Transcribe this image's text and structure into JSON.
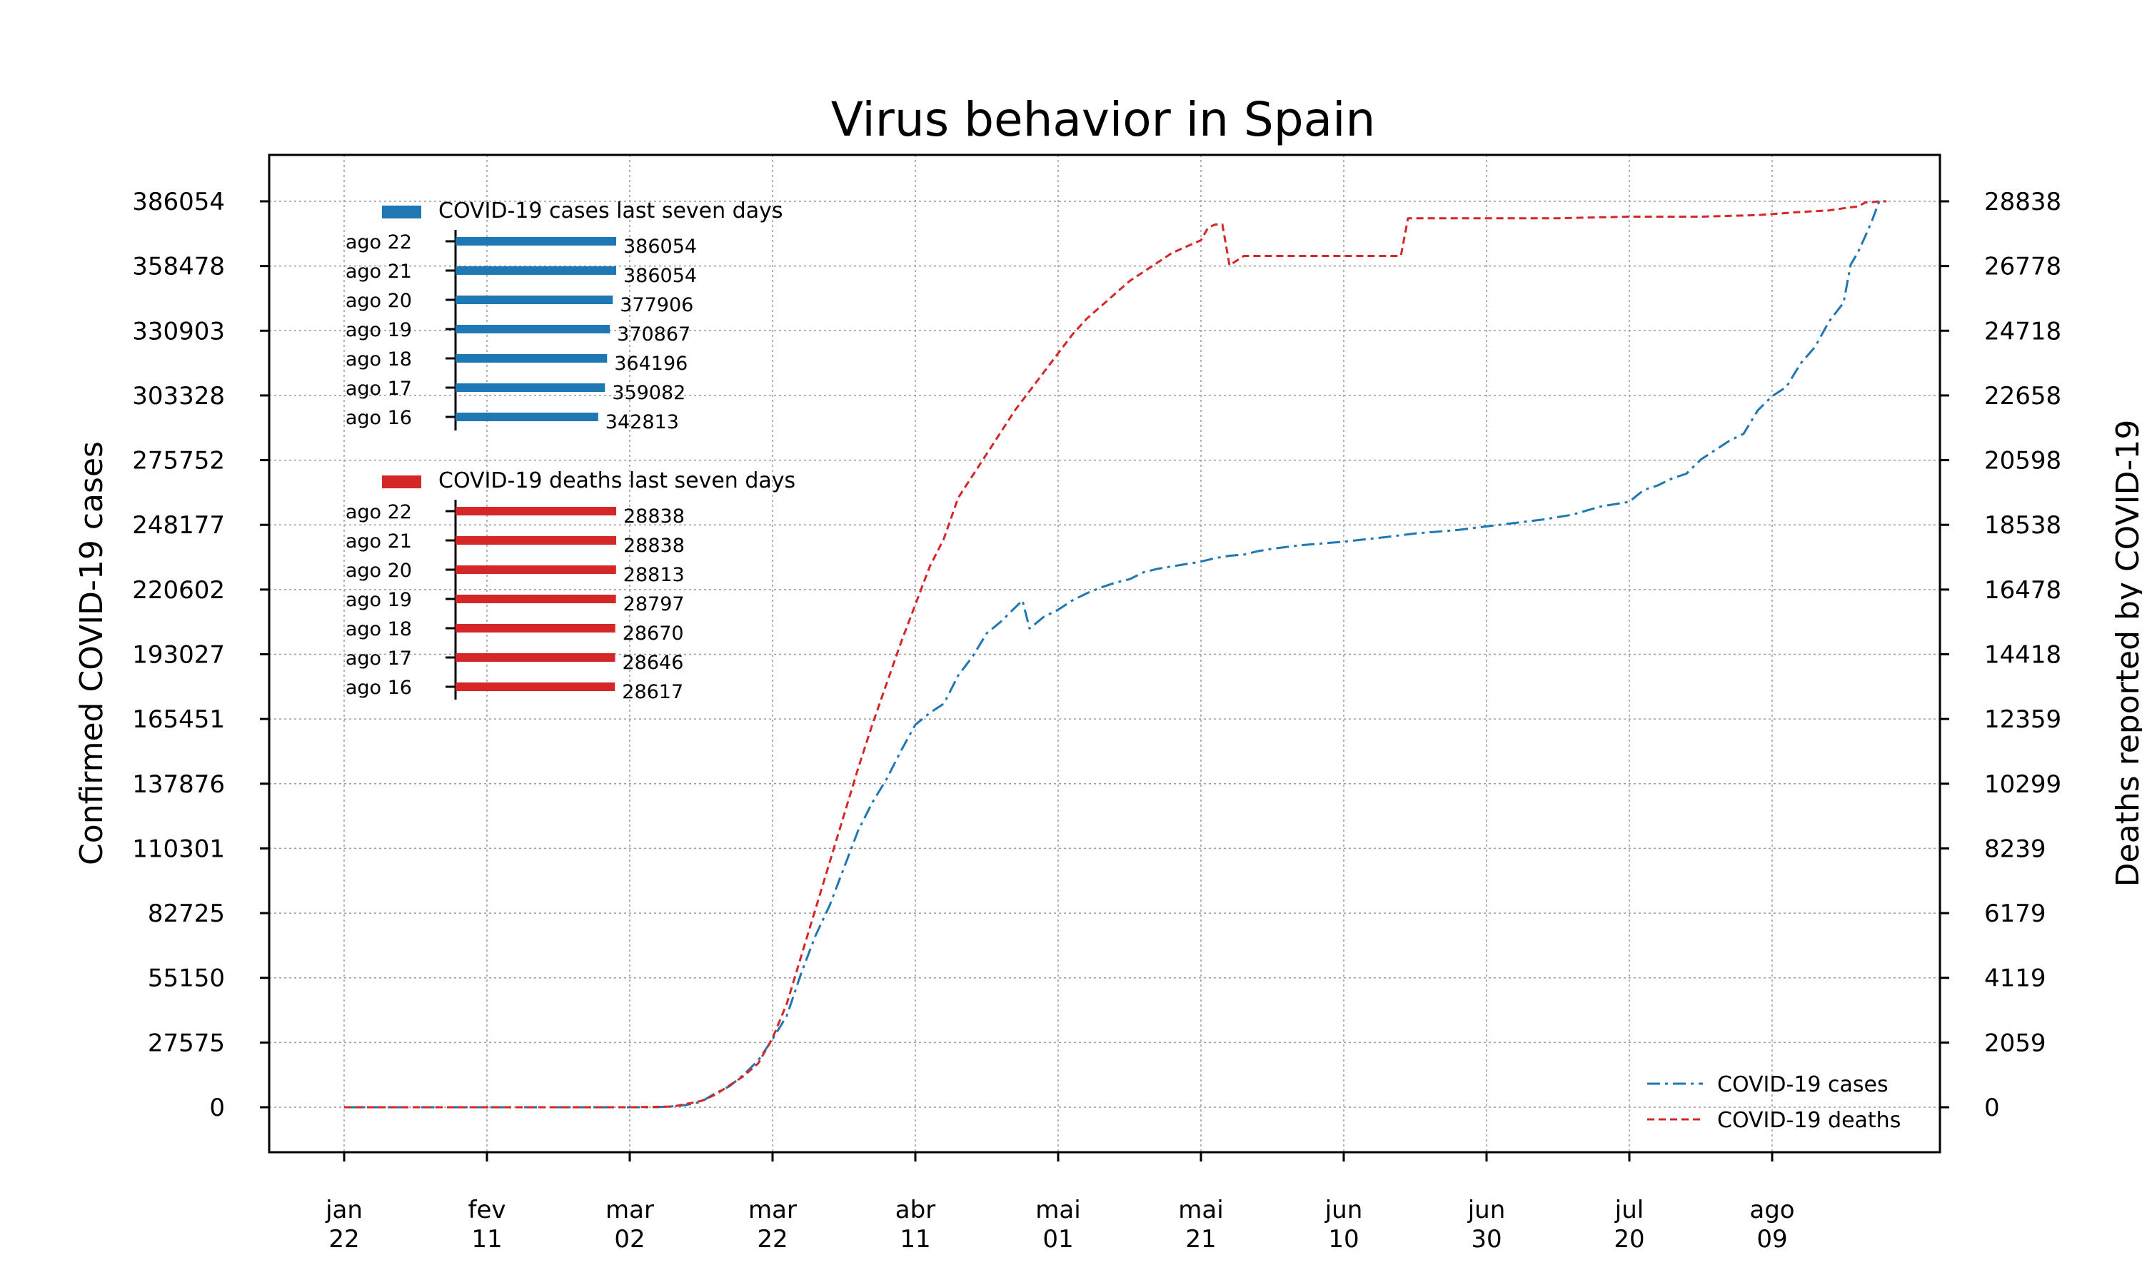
{
  "chart_data": {
    "type": "line",
    "title": "Virus behavior in Spain",
    "ylabel_left": "Confirmed COVID-19 cases",
    "ylabel_right": "Deaths reported by COVID-19",
    "x_tick_labels": [
      {
        "month": "jan",
        "day": "22"
      },
      {
        "month": "fev",
        "day": "11"
      },
      {
        "month": "mar",
        "day": "02"
      },
      {
        "month": "mar",
        "day": "22"
      },
      {
        "month": "abr",
        "day": "11"
      },
      {
        "month": "mai",
        "day": "01"
      },
      {
        "month": "mai",
        "day": "21"
      },
      {
        "month": "jun",
        "day": "10"
      },
      {
        "month": "jun",
        "day": "30"
      },
      {
        "month": "jul",
        "day": "20"
      },
      {
        "month": "ago",
        "day": "09"
      }
    ],
    "x_tick_days": [
      0,
      20,
      40,
      60,
      80,
      100,
      120,
      140,
      160,
      180,
      200
    ],
    "xlim_days": [
      -10.5,
      223.5
    ],
    "y_left_ticks": [
      "0",
      "27575",
      "55150",
      "82725",
      "110301",
      "137876",
      "165451",
      "193027",
      "220602",
      "248177",
      "275752",
      "303328",
      "330903",
      "358478",
      "386054"
    ],
    "y_left_range": [
      0,
      386054
    ],
    "y_right_ticks": [
      "0",
      "2059",
      "4119",
      "6179",
      "8239",
      "10299",
      "12359",
      "14418",
      "16478",
      "18538",
      "20598",
      "22658",
      "24718",
      "26778",
      "28838"
    ],
    "y_right_range": [
      0,
      28838
    ],
    "grid": true,
    "legend_position": "bottom-right",
    "series": [
      {
        "name": "COVID-19 cases",
        "axis": "left",
        "color": "#1f77b4",
        "style": "dash-dot",
        "points": [
          [
            0,
            0
          ],
          [
            20,
            0
          ],
          [
            40,
            1
          ],
          [
            44,
            45
          ],
          [
            46,
            400
          ],
          [
            48,
            1000
          ],
          [
            50,
            2300
          ],
          [
            52,
            6000
          ],
          [
            54,
            9000
          ],
          [
            56,
            14000
          ],
          [
            58,
            20000
          ],
          [
            60,
            29000
          ],
          [
            62,
            39000
          ],
          [
            64,
            57000
          ],
          [
            66,
            73000
          ],
          [
            68,
            86000
          ],
          [
            70,
            102000
          ],
          [
            72,
            118000
          ],
          [
            74,
            130000
          ],
          [
            76,
            140000
          ],
          [
            78,
            152000
          ],
          [
            80,
            163000
          ],
          [
            82,
            168000
          ],
          [
            84,
            172000
          ],
          [
            86,
            184000
          ],
          [
            88,
            192000
          ],
          [
            90,
            202000
          ],
          [
            92,
            207000
          ],
          [
            94,
            213000
          ],
          [
            95,
            216000
          ],
          [
            96,
            204000
          ],
          [
            98,
            209000
          ],
          [
            100,
            212000
          ],
          [
            102,
            216000
          ],
          [
            104,
            219000
          ],
          [
            106,
            221500
          ],
          [
            108,
            223500
          ],
          [
            110,
            225000
          ],
          [
            112,
            228000
          ],
          [
            114,
            229500
          ],
          [
            116,
            230500
          ],
          [
            118,
            231500
          ],
          [
            120,
            232500
          ],
          [
            122,
            234000
          ],
          [
            124,
            235000
          ],
          [
            126,
            235500
          ],
          [
            128,
            237000
          ],
          [
            130,
            238000
          ],
          [
            134,
            239500
          ],
          [
            140,
            241000
          ],
          [
            146,
            243000
          ],
          [
            150,
            244500
          ],
          [
            156,
            246000
          ],
          [
            160,
            247500
          ],
          [
            164,
            249000
          ],
          [
            168,
            250500
          ],
          [
            172,
            252500
          ],
          [
            176,
            256000
          ],
          [
            180,
            258000
          ],
          [
            182,
            263000
          ],
          [
            184,
            265000
          ],
          [
            186,
            268000
          ],
          [
            188,
            270000
          ],
          [
            190,
            276000
          ],
          [
            192,
            280000
          ],
          [
            194,
            284000
          ],
          [
            196,
            287000
          ],
          [
            198,
            297000
          ],
          [
            200,
            303000
          ],
          [
            202,
            307000
          ],
          [
            204,
            317000
          ],
          [
            206,
            324000
          ],
          [
            208,
            335000
          ],
          [
            210,
            342813
          ],
          [
            211,
            359082
          ],
          [
            212,
            364196
          ],
          [
            213,
            370867
          ],
          [
            214,
            377906
          ],
          [
            215,
            386054
          ],
          [
            216,
            386054
          ]
        ]
      },
      {
        "name": "COVID-19 deaths",
        "axis": "right",
        "color": "#d62728",
        "style": "dashed",
        "points": [
          [
            0,
            0
          ],
          [
            40,
            0
          ],
          [
            46,
            20
          ],
          [
            50,
            200
          ],
          [
            52,
            400
          ],
          [
            54,
            700
          ],
          [
            56,
            1000
          ],
          [
            58,
            1400
          ],
          [
            60,
            2200
          ],
          [
            62,
            3300
          ],
          [
            64,
            4800
          ],
          [
            66,
            6300
          ],
          [
            68,
            7800
          ],
          [
            70,
            9300
          ],
          [
            72,
            10800
          ],
          [
            74,
            12200
          ],
          [
            76,
            13500
          ],
          [
            78,
            14800
          ],
          [
            80,
            16000
          ],
          [
            82,
            17200
          ],
          [
            84,
            18100
          ],
          [
            86,
            19400
          ],
          [
            88,
            20100
          ],
          [
            90,
            20800
          ],
          [
            92,
            21500
          ],
          [
            94,
            22200
          ],
          [
            96,
            22800
          ],
          [
            98,
            23400
          ],
          [
            100,
            24000
          ],
          [
            102,
            24600
          ],
          [
            104,
            25100
          ],
          [
            106,
            25500
          ],
          [
            108,
            25900
          ],
          [
            110,
            26300
          ],
          [
            112,
            26600
          ],
          [
            114,
            26900
          ],
          [
            116,
            27200
          ],
          [
            118,
            27400
          ],
          [
            120,
            27600
          ],
          [
            121,
            28000
          ],
          [
            122,
            28100
          ],
          [
            123,
            28100
          ],
          [
            124,
            26800
          ],
          [
            126,
            27100
          ],
          [
            130,
            27100
          ],
          [
            140,
            27100
          ],
          [
            148,
            27100
          ],
          [
            149,
            28300
          ],
          [
            150,
            28300
          ],
          [
            160,
            28300
          ],
          [
            170,
            28300
          ],
          [
            180,
            28350
          ],
          [
            190,
            28350
          ],
          [
            198,
            28400
          ],
          [
            204,
            28500
          ],
          [
            208,
            28550
          ],
          [
            210,
            28617
          ],
          [
            211,
            28646
          ],
          [
            212,
            28670
          ],
          [
            213,
            28797
          ],
          [
            214,
            28813
          ],
          [
            215,
            28838
          ],
          [
            216,
            28838
          ]
        ]
      }
    ],
    "inset_cases": {
      "title": "COVID-19 cases last seven days",
      "color": "#1f77b4",
      "xlim": [
        0,
        386054
      ],
      "bars": [
        {
          "label": "ago 22",
          "value": 386054,
          "text": "386054"
        },
        {
          "label": "ago 21",
          "value": 386054,
          "text": "386054"
        },
        {
          "label": "ago 20",
          "value": 377906,
          "text": "377906"
        },
        {
          "label": "ago 19",
          "value": 370867,
          "text": "370867"
        },
        {
          "label": "ago 18",
          "value": 364196,
          "text": "364196"
        },
        {
          "label": "ago 17",
          "value": 359082,
          "text": "359082"
        },
        {
          "label": "ago 16",
          "value": 342813,
          "text": "342813"
        }
      ]
    },
    "inset_deaths": {
      "title": "COVID-19 deaths last seven days",
      "color": "#d62728",
      "xlim": [
        0,
        28838
      ],
      "bars": [
        {
          "label": "ago 22",
          "value": 28838,
          "text": "28838"
        },
        {
          "label": "ago 21",
          "value": 28838,
          "text": "28838"
        },
        {
          "label": "ago 20",
          "value": 28813,
          "text": "28813"
        },
        {
          "label": "ago 19",
          "value": 28797,
          "text": "28797"
        },
        {
          "label": "ago 18",
          "value": 28670,
          "text": "28670"
        },
        {
          "label": "ago 17",
          "value": 28646,
          "text": "28646"
        },
        {
          "label": "ago 16",
          "value": 28617,
          "text": "28617"
        }
      ]
    }
  }
}
